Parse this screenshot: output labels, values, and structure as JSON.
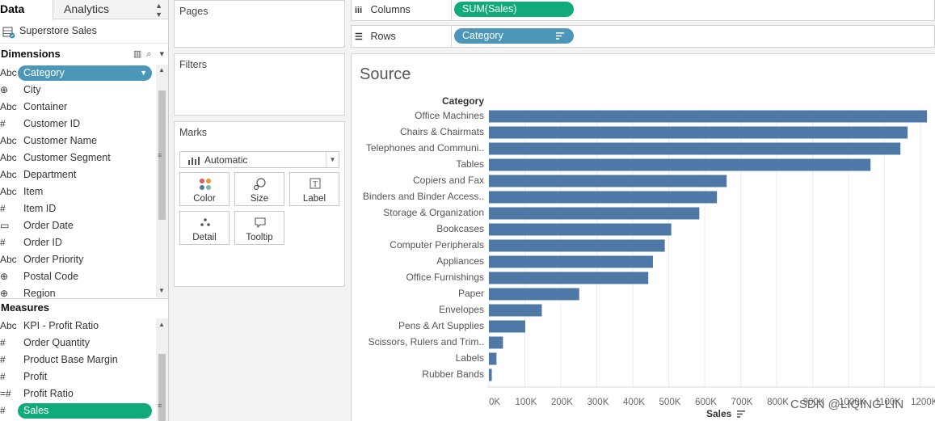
{
  "tabs": {
    "data_label": "Data",
    "analytics_label": "Analytics"
  },
  "data_source": {
    "name": "Superstore Sales",
    "icon": "database-icon"
  },
  "dimensions": {
    "title": "Dimensions",
    "items": [
      {
        "type": "Abc",
        "label": "Category",
        "selected": true
      },
      {
        "type": "geo",
        "label": "City"
      },
      {
        "type": "Abc",
        "label": "Container"
      },
      {
        "type": "#",
        "label": "Customer ID"
      },
      {
        "type": "Abc",
        "label": "Customer Name"
      },
      {
        "type": "Abc",
        "label": "Customer Segment"
      },
      {
        "type": "Abc",
        "label": "Department"
      },
      {
        "type": "Abc",
        "label": "Item"
      },
      {
        "type": "#",
        "label": "Item ID"
      },
      {
        "type": "date",
        "label": "Order Date"
      },
      {
        "type": "#",
        "label": "Order ID"
      },
      {
        "type": "Abc",
        "label": "Order Priority"
      },
      {
        "type": "geo",
        "label": "Postal Code"
      },
      {
        "type": "geo",
        "label": "Region"
      }
    ]
  },
  "measures": {
    "title": "Measures",
    "items": [
      {
        "type": "Abc",
        "label": "KPI - Profit Ratio"
      },
      {
        "type": "#",
        "label": "Order Quantity"
      },
      {
        "type": "#",
        "label": "Product Base Margin"
      },
      {
        "type": "#",
        "label": "Profit"
      },
      {
        "type": "=#",
        "label": "Profit Ratio"
      },
      {
        "type": "#",
        "label": "Sales",
        "selected": true
      }
    ]
  },
  "cards": {
    "pages": "Pages",
    "filters": "Filters",
    "marks": "Marks",
    "mark_type": "Automatic",
    "buttons": {
      "color": "Color",
      "size": "Size",
      "label": "Label",
      "detail": "Detail",
      "tooltip": "Tooltip"
    }
  },
  "shelves": {
    "columns_label": "Columns",
    "columns_pill": "SUM(Sales)",
    "rows_label": "Rows",
    "rows_pill": "Category"
  },
  "viz": {
    "title": "Source",
    "watermark": "CSDN @LIQING LIN"
  },
  "chart_data": {
    "type": "bar",
    "orientation": "horizontal",
    "title": "Source",
    "ylabel": "Category",
    "xlabel": "Sales",
    "categories": [
      "Office Machines",
      "Chairs & Chairmats",
      "Telephones and Communi..",
      "Tables",
      "Copiers and Fax",
      "Binders and Binder Access..",
      "Storage & Organization",
      "Bookcases",
      "Computer Peripherals",
      "Appliances",
      "Office Furnishings",
      "Paper",
      "Envelopes",
      "Pens & Art Supplies",
      "Scissors, Rulers and Trim..",
      "Labels",
      "Rubber Bands"
    ],
    "values": [
      1218000,
      1164000,
      1144000,
      1061000,
      661000,
      634000,
      585000,
      507000,
      489000,
      456000,
      443000,
      251000,
      147000,
      101000,
      39000,
      21000,
      8000
    ],
    "xticks": [
      "0K",
      "100K",
      "200K",
      "300K",
      "400K",
      "500K",
      "600K",
      "700K",
      "800K",
      "900K",
      "1000K",
      "1100K",
      "1200K"
    ],
    "xlim": [
      0,
      1220000
    ],
    "bar_color": "#4e79a7",
    "grid": true
  }
}
